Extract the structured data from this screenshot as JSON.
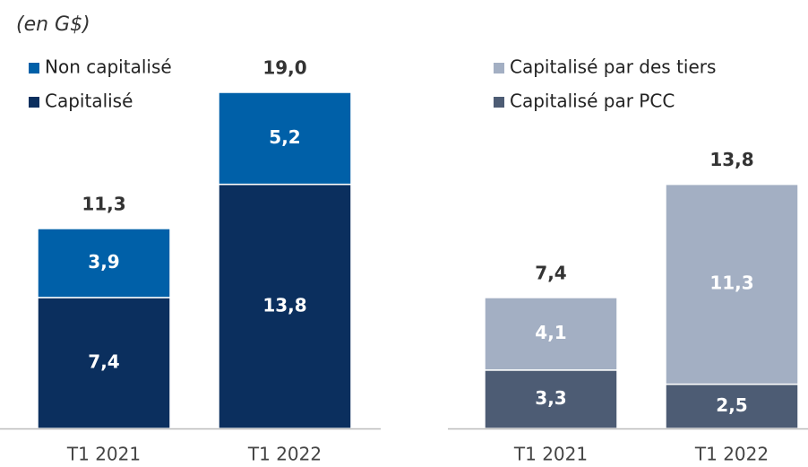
{
  "chart_data": [
    {
      "type": "stacked_bar",
      "subtitle": "(en G$)",
      "categories": [
        "T1 2021",
        "T1 2022"
      ],
      "series": [
        {
          "name": "Capitalisé",
          "color": "#0b2f5e",
          "values": [
            7.4,
            13.8
          ],
          "value_labels": [
            "7,4",
            "13,8"
          ]
        },
        {
          "name": "Non capitalisé",
          "color": "#0060a8",
          "values": [
            3.9,
            5.2
          ],
          "value_labels": [
            "3,9",
            "5,2"
          ]
        }
      ],
      "totals": [
        11.3,
        19.0
      ],
      "total_labels": [
        "11,3",
        "19,0"
      ],
      "ylim": [
        0,
        19
      ]
    },
    {
      "type": "stacked_bar",
      "categories": [
        "T1 2021",
        "T1 2022"
      ],
      "series": [
        {
          "name": "Capitalisé par PCC",
          "color": "#4d5c74",
          "values": [
            3.3,
            2.5
          ],
          "value_labels": [
            "3,3",
            "2,5"
          ]
        },
        {
          "name": "Capitalisé par des tiers",
          "color": "#a3afc3",
          "values": [
            4.1,
            11.3
          ],
          "value_labels": [
            "4,1",
            "11,3"
          ]
        }
      ],
      "totals": [
        7.4,
        13.8
      ],
      "total_labels": [
        "7,4",
        "13,8"
      ],
      "ylim": [
        0,
        19
      ]
    }
  ]
}
